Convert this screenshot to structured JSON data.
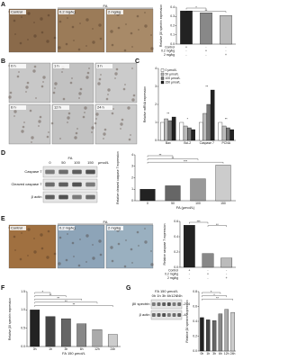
{
  "panel_letters": [
    "A",
    "B",
    "C",
    "D",
    "E",
    "F",
    "G"
  ],
  "images": {
    "A": {
      "group_label": "FA",
      "labels": [
        "Control",
        "0.2 mg/kg",
        "2 mg/kg"
      ]
    },
    "B": {
      "labels": [
        "0 h",
        "1 h",
        "3 h",
        "6 h",
        "12 h",
        "24 h"
      ]
    },
    "E": {
      "group_label": "FA",
      "labels": [
        "Control",
        "0.2 mg/kg",
        "2 mg/kg"
      ]
    }
  },
  "blots": {
    "D": {
      "treatment": "FA",
      "lanes": [
        "0",
        "50",
        "100",
        "150"
      ],
      "unit": "μmol/L",
      "rows": [
        "Caspase 7",
        "Cleaved caspase 7",
        "β actin"
      ]
    },
    "G": {
      "treatment": "FA 150 μmol/L",
      "lanes": [
        "0h",
        "1h",
        "3h",
        "6h",
        "12h",
        "24h"
      ],
      "rows": [
        "βII spectrin",
        "β actin"
      ],
      "sizes": [
        "-274",
        "-42"
      ]
    }
  },
  "chart_data": [
    {
      "type": "bar",
      "y_label": "Relative βII spectrin expression",
      "values": [
        0.36,
        0.34,
        0.31
      ],
      "colors": [
        "#222222",
        "#888888",
        "#bbbbbb"
      ],
      "ylim": [
        0,
        0.4
      ],
      "yticks": [
        {
          "value": 0,
          "label": "0.0"
        },
        0.1,
        0.2,
        0.3,
        0.4
      ],
      "treatment_rows": [
        {
          "label": "Control",
          "signs": [
            "+",
            "-",
            "-"
          ]
        },
        {
          "label": "0.2 mg/kg",
          "signs": [
            "-",
            "+",
            "-"
          ]
        },
        {
          "label": "2 mg/kg",
          "signs": [
            "-",
            "-",
            "+"
          ]
        }
      ],
      "annotations": [
        "*",
        "**"
      ]
    },
    {
      "type": "bar",
      "y_label": "Relative mRNA expression",
      "categories": [
        "Bax",
        "Bcl-2",
        "Caspase 7",
        "PCNA"
      ],
      "series": [
        {
          "name": "0 μmol/L",
          "color": "#ffffff",
          "values": [
            1,
            1,
            1,
            1
          ]
        },
        {
          "name": "50 μmol/L",
          "color": "#bbbbbb",
          "values": [
            1.2,
            0.8,
            1.5,
            0.8
          ]
        },
        {
          "name": "100 μmol/L",
          "color": "#777777",
          "values": [
            1.1,
            0.7,
            2,
            0.7
          ]
        },
        {
          "name": "150 μmol/L",
          "color": "#222222",
          "values": [
            1.3,
            0.6,
            2.8,
            0.6
          ]
        }
      ],
      "ylim": [
        0,
        4
      ],
      "yticks": [
        0,
        1,
        2,
        3,
        4
      ],
      "legend": "upper left",
      "annotations": [
        "**",
        "*",
        "**",
        "**"
      ]
    },
    {
      "type": "bar",
      "y_label": "Relative cleaved caspase 7 expression",
      "x_label": "FA (μmol/L)",
      "categories": [
        "0",
        "50",
        "100",
        "150"
      ],
      "values": [
        1,
        1.3,
        1.9,
        3.1
      ],
      "colors": [
        "#222222",
        "#666666",
        "#999999",
        "#cccccc"
      ],
      "ylim": [
        0,
        4
      ],
      "yticks": [
        0,
        1,
        2,
        3,
        4
      ],
      "annotations": [
        "**",
        "**",
        "***"
      ]
    },
    {
      "type": "bar",
      "y_label": "Relative caspase 7 expression",
      "values": [
        0.55,
        0.18,
        0.12
      ],
      "colors": [
        "#222222",
        "#888888",
        "#bbbbbb"
      ],
      "ylim": [
        0,
        0.6
      ],
      "yticks": [
        {
          "value": 0,
          "label": "0.0"
        },
        0.2,
        0.4,
        0.6
      ],
      "treatment_rows": [
        {
          "label": "Control",
          "signs": [
            "+",
            "-",
            "-"
          ]
        },
        {
          "label": "0.2 mg/kg",
          "signs": [
            "-",
            "+",
            "-"
          ]
        },
        {
          "label": "2 mg/kg",
          "signs": [
            "-",
            "-",
            "+"
          ]
        }
      ],
      "annotations": [
        "***",
        "**"
      ]
    },
    {
      "type": "bar",
      "y_label": "Relative βII spectrin expression",
      "x_label": "FA 150 μmol/L",
      "categories": [
        "0h",
        "1h",
        "3h",
        "6h",
        "12h",
        "24h"
      ],
      "values": [
        1,
        0.82,
        0.76,
        0.62,
        0.46,
        0.33
      ],
      "colors": [
        "#222222",
        "#444444",
        "#666666",
        "#888888",
        "#aaaaaa",
        "#cccccc"
      ],
      "ylim": [
        0,
        1.5
      ],
      "yticks": [
        {
          "value": 0,
          "label": "0.0"
        },
        0.5,
        {
          "value": 1,
          "label": "1.0"
        },
        1.5
      ],
      "annotations": [
        "*",
        "**",
        "**",
        "**",
        "**"
      ]
    },
    {
      "type": "bar",
      "y_label": "Relative βII spectrin expression",
      "categories": [
        "0h",
        "1h",
        "3h",
        "6h",
        "12h",
        "24h"
      ],
      "values": [
        0.45,
        0.42,
        0.41,
        0.5,
        0.56,
        0.52
      ],
      "colors": [
        "#222222",
        "#444444",
        "#666666",
        "#888888",
        "#aaaaaa",
        "#cccccc"
      ],
      "ylim": [
        0,
        0.8
      ],
      "yticks": [
        {
          "value": 0,
          "label": "0.0"
        },
        0.2,
        0.4,
        0.6,
        0.8
      ],
      "annotations": [
        "*",
        "*",
        "**"
      ]
    }
  ]
}
